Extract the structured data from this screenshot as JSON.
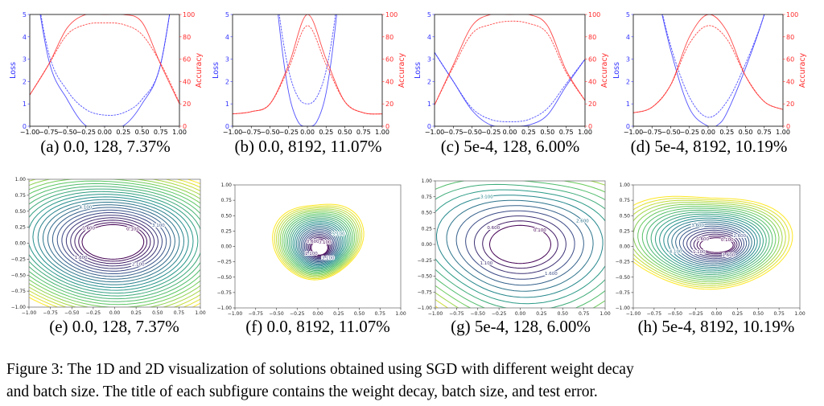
{
  "figure": {
    "caption_line1": "Figure 3: The 1D and 2D visualization of solutions obtained using SGD with different weight decay",
    "caption_line2": "and batch size. The title of each subfigure contains the weight decay, batch size, and test error."
  },
  "colors": {
    "loss": "#3333ff",
    "accuracy": "#ff2a2a",
    "contour_low": "#440154",
    "contour_high": "#fde725"
  },
  "chart_data": [
    {
      "type": "line",
      "subcaption": "(a) 0.0, 128, 7.37%",
      "ylabel_left": "Loss",
      "ylabel_right": "Accuracy",
      "xlim": [
        -1,
        1
      ],
      "ylim_left": [
        0,
        5
      ],
      "ylim_right": [
        0,
        100
      ],
      "xticks": [
        "−1.00",
        "−0.75",
        "−0.50",
        "−0.25",
        "0.00",
        "0.25",
        "0.50",
        "0.75",
        "1.00"
      ],
      "yticks_left": [
        "0",
        "1",
        "2",
        "3",
        "4",
        "5"
      ],
      "yticks_right": [
        "0",
        "20",
        "40",
        "60",
        "80",
        "100"
      ],
      "series": [
        {
          "axis": "left",
          "style": "solid",
          "x": [
            -1,
            -0.75,
            -0.5,
            -0.25,
            0,
            0.25,
            0.5,
            0.75,
            1
          ],
          "y": [
            8,
            3,
            1.2,
            0.02,
            0,
            0.02,
            1,
            2.8,
            8
          ]
        },
        {
          "axis": "left",
          "style": "dashed",
          "x": [
            -1,
            -0.75,
            -0.5,
            -0.25,
            0,
            0.25,
            0.5,
            0.75,
            1
          ],
          "y": [
            8,
            3.3,
            1.6,
            0.75,
            0.5,
            0.6,
            1.2,
            2.8,
            8
          ]
        },
        {
          "axis": "right",
          "style": "solid",
          "x": [
            -1,
            -0.75,
            -0.5,
            -0.25,
            0,
            0.25,
            0.5,
            0.75,
            1
          ],
          "y": [
            28,
            55,
            88,
            100,
            100,
            100,
            93,
            55,
            20
          ]
        },
        {
          "axis": "right",
          "style": "dashed",
          "x": [
            -1,
            -0.75,
            -0.5,
            -0.25,
            0,
            0.25,
            0.5,
            0.75,
            1
          ],
          "y": [
            28,
            55,
            82,
            91,
            92.5,
            91,
            82,
            56,
            21
          ]
        }
      ]
    },
    {
      "type": "line",
      "subcaption": "(b) 0.0, 8192, 11.07%",
      "ylabel_left": "Loss",
      "ylabel_right": "Accuracy",
      "xlim": [
        -1,
        1
      ],
      "ylim_left": [
        0,
        5
      ],
      "ylim_right": [
        0,
        100
      ],
      "xticks": [
        "−1.00",
        "−0.75",
        "−0.50",
        "−0.25",
        "0.00",
        "0.25",
        "0.50",
        "0.75",
        "1.00"
      ],
      "yticks_left": [
        "0",
        "1",
        "2",
        "3",
        "4",
        "5"
      ],
      "yticks_right": [
        "0",
        "20",
        "40",
        "60",
        "80",
        "100"
      ],
      "series": [
        {
          "axis": "left",
          "style": "solid",
          "x": [
            -0.5,
            -0.375,
            -0.25,
            -0.125,
            0,
            0.125,
            0.25,
            0.375,
            0.5
          ],
          "y": [
            9,
            4.5,
            1.5,
            0.2,
            0,
            0.2,
            1.5,
            4.5,
            9
          ]
        },
        {
          "axis": "left",
          "style": "dashed",
          "x": [
            -0.5,
            -0.375,
            -0.25,
            -0.125,
            0,
            0.125,
            0.25,
            0.375,
            0.5
          ],
          "y": [
            9,
            5,
            2.5,
            1.3,
            1.0,
            1.3,
            2.5,
            5,
            9
          ]
        },
        {
          "axis": "right",
          "style": "solid",
          "x": [
            -1,
            -0.75,
            -0.5,
            -0.25,
            0,
            0.25,
            0.5,
            0.75,
            1
          ],
          "y": [
            11,
            13,
            20,
            55,
            100,
            60,
            22,
            12,
            11
          ]
        },
        {
          "axis": "right",
          "style": "dashed",
          "x": [
            -1,
            -0.75,
            -0.5,
            -0.25,
            0,
            0.25,
            0.5,
            0.75,
            1
          ],
          "y": [
            11,
            13,
            20,
            52,
            90,
            55,
            22,
            12,
            11
          ]
        }
      ]
    },
    {
      "type": "line",
      "subcaption": "(c) 5e-4, 128, 6.00%",
      "ylabel_left": "Loss",
      "ylabel_right": "Accuracy",
      "xlim": [
        -1,
        1
      ],
      "ylim_left": [
        0,
        5
      ],
      "ylim_right": [
        0,
        100
      ],
      "xticks": [
        "−1.00",
        "−0.75",
        "−0.50",
        "−0.25",
        "0.00",
        "0.25",
        "0.50",
        "0.75",
        "1.00"
      ],
      "yticks_left": [
        "0",
        "1",
        "2",
        "3",
        "4",
        "5"
      ],
      "yticks_right": [
        "0",
        "20",
        "40",
        "60",
        "80",
        "100"
      ],
      "series": [
        {
          "axis": "left",
          "style": "solid",
          "x": [
            -1,
            -0.75,
            -0.5,
            -0.25,
            0,
            0.25,
            0.5,
            0.75,
            1
          ],
          "y": [
            3.3,
            2.0,
            0.7,
            0.05,
            0,
            0.05,
            0.5,
            1.8,
            3.0
          ]
        },
        {
          "axis": "left",
          "style": "dashed",
          "x": [
            -1,
            -0.75,
            -0.5,
            -0.25,
            0,
            0.25,
            0.5,
            0.75,
            1
          ],
          "y": [
            3.3,
            2.0,
            0.8,
            0.3,
            0.2,
            0.3,
            0.8,
            1.9,
            3.0
          ]
        },
        {
          "axis": "right",
          "style": "solid",
          "x": [
            -1,
            -0.75,
            -0.5,
            -0.25,
            0,
            0.25,
            0.5,
            0.75,
            1
          ],
          "y": [
            19,
            55,
            90,
            100,
            100,
            100,
            90,
            50,
            23
          ]
        },
        {
          "axis": "right",
          "style": "dashed",
          "x": [
            -1,
            -0.75,
            -0.5,
            -0.25,
            0,
            0.25,
            0.5,
            0.75,
            1
          ],
          "y": [
            19,
            53,
            83,
            91,
            94,
            92,
            83,
            48,
            23
          ]
        }
      ]
    },
    {
      "type": "line",
      "subcaption": "(d) 5e-4, 8192, 10.19%",
      "ylabel_left": "Loss",
      "ylabel_right": "Accuracy",
      "xlim": [
        -1,
        1
      ],
      "ylim_left": [
        0,
        5
      ],
      "ylim_right": [
        0,
        100
      ],
      "xticks": [
        "−1.00",
        "−0.75",
        "−0.50",
        "−0.25",
        "0.00",
        "0.25",
        "0.50",
        "0.75",
        "1.00"
      ],
      "yticks_left": [
        "0",
        "1",
        "2",
        "3",
        "4",
        "5"
      ],
      "yticks_right": [
        "0",
        "20",
        "40",
        "60",
        "80",
        "100"
      ],
      "series": [
        {
          "axis": "left",
          "style": "solid",
          "x": [
            -0.75,
            -0.5,
            -0.25,
            0,
            0.125,
            0.25,
            0.5,
            0.75,
            1
          ],
          "y": [
            7,
            3.4,
            0.8,
            0,
            0.05,
            0.6,
            2.6,
            5,
            8
          ]
        },
        {
          "axis": "left",
          "style": "dashed",
          "x": [
            -0.75,
            -0.5,
            -0.25,
            0,
            0.25,
            0.5,
            0.75,
            1
          ],
          "y": [
            7,
            3.6,
            1.3,
            0.4,
            1.1,
            2.8,
            5,
            8
          ]
        },
        {
          "axis": "right",
          "style": "solid",
          "x": [
            -1,
            -0.75,
            -0.5,
            -0.25,
            0,
            0.25,
            0.5,
            0.75,
            1
          ],
          "y": [
            12,
            17,
            37,
            80,
            100,
            85,
            45,
            22,
            15
          ]
        },
        {
          "axis": "right",
          "style": "dashed",
          "x": [
            -1,
            -0.75,
            -0.5,
            -0.25,
            0,
            0.25,
            0.5,
            0.75,
            1
          ],
          "y": [
            12,
            17,
            37,
            74,
            90,
            78,
            45,
            22,
            15
          ]
        }
      ]
    },
    {
      "type": "contour",
      "subcaption": "(e) 0.0, 128, 7.37%",
      "xlim": [
        -1,
        1
      ],
      "ylim": [
        -1,
        1
      ],
      "xticks": [
        "−1.00",
        "−0.75",
        "−0.50",
        "−0.25",
        "0.00",
        "0.25",
        "0.50",
        "0.75",
        "1.00"
      ],
      "yticks": [
        "−1.00",
        "−0.75",
        "−0.50",
        "−0.25",
        "0.00",
        "0.25",
        "0.50",
        "0.75",
        "1.00"
      ],
      "levels": {
        "start": 0.1,
        "step": 0.5,
        "count": 24
      },
      "level_labels": [
        "0.100",
        "0.600",
        "1.600",
        "2.100",
        "3.100",
        "4.100"
      ]
    },
    {
      "type": "contour",
      "subcaption": "(f) 0.0, 8192, 11.07%",
      "xlim": [
        -1,
        1
      ],
      "ylim": [
        -1,
        1
      ],
      "xticks": [
        "−1.00",
        "−0.75",
        "−0.50",
        "−0.25",
        "0.00",
        "0.25",
        "0.50",
        "0.75",
        "1.00"
      ],
      "yticks": [
        "−1.00",
        "−0.75",
        "−0.50",
        "−0.25",
        "0.00",
        "0.25",
        "0.50",
        "0.75",
        "1.00"
      ],
      "levels": {
        "start": 0.1,
        "step": 0.5,
        "count": 24
      },
      "level_labels": [
        "0.100",
        "0.600",
        "1.100",
        "3.100",
        "5.100"
      ]
    },
    {
      "type": "contour",
      "subcaption": "(g) 5e-4, 128, 6.00%",
      "xlim": [
        -1,
        1
      ],
      "ylim": [
        -1,
        1
      ],
      "xticks": [
        "−1.00",
        "−0.75",
        "−0.50",
        "−0.25",
        "0.00",
        "0.25",
        "0.50",
        "0.75",
        "1.00"
      ],
      "yticks": [
        "−1.00",
        "−0.75",
        "−0.50",
        "−0.25",
        "0.00",
        "0.25",
        "0.50",
        "0.75",
        "1.00"
      ],
      "levels": {
        "start": 0.1,
        "step": 0.5,
        "count": 14
      },
      "level_labels": [
        "0.100",
        "0.600",
        "1.100",
        "1.600",
        "2.600",
        "3.100"
      ]
    },
    {
      "type": "contour",
      "subcaption": "(h) 5e-4, 8192, 10.19%",
      "xlim": [
        -1,
        1
      ],
      "ylim": [
        -1,
        1
      ],
      "xticks": [
        "−1.00",
        "−0.75",
        "−0.50",
        "−0.25",
        "0.00",
        "0.25",
        "0.50",
        "0.75",
        "1.00"
      ],
      "yticks": [
        "−1.00",
        "−0.75",
        "−0.50",
        "−0.25",
        "0.00",
        "0.25",
        "0.50",
        "0.75",
        "1.00"
      ],
      "levels": {
        "start": 0.1,
        "step": 0.5,
        "count": 22
      },
      "level_labels": [
        "0.100",
        "0.600",
        "1.100",
        "1.600",
        "2.600",
        "3.600",
        "4.100"
      ]
    }
  ]
}
